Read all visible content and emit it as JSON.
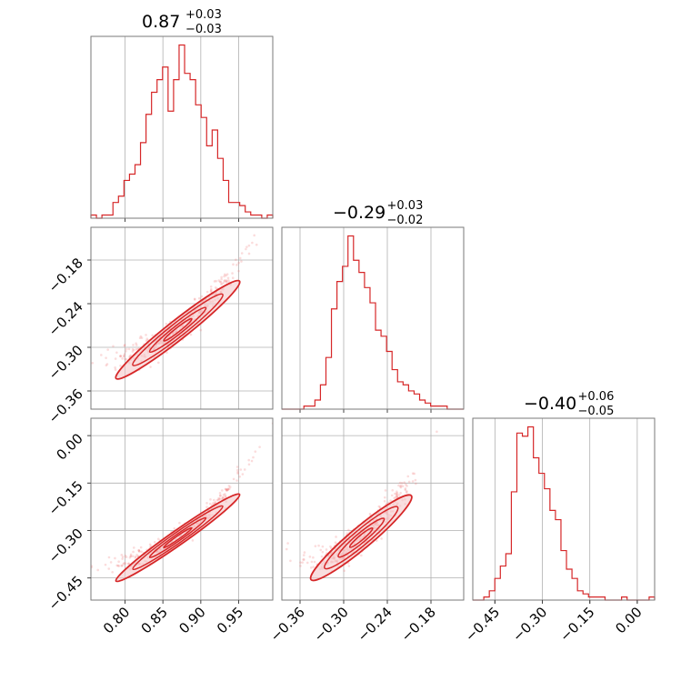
{
  "chart_data": {
    "type": "corner",
    "colors": {
      "line": "#d62728",
      "fill": "#f4c2c4",
      "points": "#f08080"
    },
    "grid": true,
    "parameters": [
      {
        "title_value": "0.87",
        "title_plus": "+0.03",
        "title_minus": "−0.03",
        "range": [
          0.755,
          0.995
        ],
        "ticks": [
          0.8,
          0.85,
          0.9,
          0.95
        ],
        "tick_labels": [
          "0.80",
          "0.85",
          "0.90",
          "0.95"
        ],
        "hist_counts": [
          1,
          0,
          1,
          1,
          5,
          7,
          12,
          14,
          17,
          24,
          33,
          40,
          44,
          48,
          34,
          44,
          55,
          46,
          44,
          36,
          32,
          23,
          28,
          19,
          12,
          5,
          5,
          4,
          2,
          1,
          1,
          0,
          1
        ]
      },
      {
        "title_value": "−0.29",
        "title_plus": "+0.03",
        "title_minus": "−0.02",
        "range": [
          -0.385,
          -0.135
        ],
        "ticks": [
          -0.36,
          -0.3,
          -0.24,
          -0.18
        ],
        "tick_labels": [
          "−0.36",
          "−0.30",
          "−0.24",
          "−0.18"
        ],
        "hist_counts": [
          0,
          0,
          0,
          0,
          1,
          1,
          3,
          8,
          17,
          33,
          42,
          47,
          57,
          49,
          45,
          40,
          35,
          26,
          24,
          19,
          13,
          9,
          8,
          6,
          5,
          3,
          2,
          1,
          1,
          1,
          0,
          0,
          0
        ]
      },
      {
        "title_value": "−0.40",
        "title_plus": "+0.06",
        "title_minus": "−0.05",
        "range": [
          -0.52,
          0.055
        ],
        "ticks": [
          -0.45,
          -0.3,
          -0.15,
          0.0
        ],
        "tick_labels": [
          "−0.45",
          "−0.30",
          "−0.15",
          "0.00"
        ],
        "hist_counts": [
          0,
          0,
          1,
          3,
          7,
          11,
          15,
          35,
          54,
          53,
          56,
          46,
          41,
          36,
          29,
          26,
          16,
          10,
          7,
          3,
          2,
          1,
          1,
          1,
          0,
          0,
          0,
          1,
          0,
          0,
          0,
          0,
          1
        ]
      }
    ],
    "pairs": [
      {
        "x_param": 0,
        "y_param": 1,
        "corr": 0.97
      },
      {
        "x_param": 0,
        "y_param": 2,
        "corr": 0.98
      },
      {
        "x_param": 1,
        "y_param": 2,
        "corr": 0.95
      }
    ]
  }
}
